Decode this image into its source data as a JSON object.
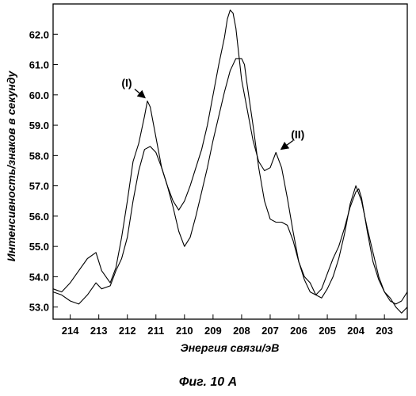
{
  "caption": "Фиг. 10 А",
  "chart_data": {
    "type": "line",
    "xlabel": "Энергия связи/эВ",
    "ylabel": "Интенсивность/знаков в секунду",
    "xlim": [
      214.6,
      202.2
    ],
    "ylim": [
      52.6,
      63.0
    ],
    "x_ticks": [
      214,
      213,
      212,
      211,
      210,
      209,
      208,
      207,
      206,
      205,
      204,
      203
    ],
    "y_ticks": [
      53.0,
      54.0,
      55.0,
      56.0,
      57.0,
      58.0,
      59.0,
      60.0,
      61.0,
      62.0
    ],
    "grid": false,
    "annotations": [
      {
        "text": "(I)",
        "x": 211.3,
        "y": 59.8
      },
      {
        "text": "(II)",
        "x": 206.7,
        "y": 58.1
      }
    ],
    "series": [
      {
        "label": "(I)",
        "x": [
          214.6,
          214.3,
          214.0,
          213.7,
          213.4,
          213.1,
          212.9,
          212.6,
          212.4,
          212.2,
          212.0,
          211.8,
          211.6,
          211.4,
          211.3,
          211.2,
          211.0,
          210.8,
          210.6,
          210.4,
          210.2,
          210.0,
          209.8,
          209.6,
          209.4,
          209.2,
          209.0,
          208.8,
          208.6,
          208.5,
          208.4,
          208.3,
          208.2,
          208.0,
          207.8,
          207.6,
          207.4,
          207.2,
          207.0,
          206.8,
          206.6,
          206.4,
          206.2,
          206.0,
          205.8,
          205.6,
          205.4,
          205.2,
          205.0,
          204.8,
          204.6,
          204.4,
          204.2,
          204.0,
          203.9,
          203.8,
          203.6,
          203.4,
          203.2,
          203.0,
          202.8,
          202.6,
          202.4,
          202.2
        ],
        "y": [
          53.6,
          53.5,
          53.8,
          54.2,
          54.6,
          54.8,
          54.2,
          53.8,
          54.3,
          55.3,
          56.5,
          57.8,
          58.4,
          59.3,
          59.8,
          59.6,
          58.6,
          57.6,
          57.0,
          56.5,
          56.2,
          56.5,
          57.0,
          57.6,
          58.2,
          59.0,
          60.0,
          61.0,
          61.9,
          62.5,
          62.8,
          62.7,
          62.2,
          60.5,
          59.5,
          58.5,
          57.8,
          57.5,
          57.6,
          58.1,
          57.6,
          56.6,
          55.5,
          54.5,
          53.9,
          53.5,
          53.4,
          53.6,
          54.1,
          54.6,
          55.0,
          55.6,
          56.3,
          56.8,
          56.9,
          56.6,
          55.5,
          54.5,
          53.9,
          53.5,
          53.2,
          53.1,
          53.2,
          53.5
        ]
      },
      {
        "label": "(II)",
        "x": [
          214.6,
          214.3,
          214.0,
          213.7,
          213.4,
          213.1,
          212.9,
          212.6,
          212.4,
          212.2,
          212.0,
          211.8,
          211.6,
          211.4,
          211.2,
          211.0,
          210.8,
          210.6,
          210.4,
          210.2,
          210.0,
          209.8,
          209.6,
          209.4,
          209.2,
          209.0,
          208.8,
          208.6,
          208.4,
          208.2,
          208.0,
          207.9,
          207.8,
          207.6,
          207.4,
          207.2,
          207.0,
          206.8,
          206.6,
          206.4,
          206.2,
          206.0,
          205.8,
          205.6,
          205.4,
          205.2,
          205.0,
          204.8,
          204.6,
          204.4,
          204.2,
          204.0,
          203.8,
          203.6,
          203.4,
          203.2,
          203.0,
          202.8,
          202.6,
          202.4,
          202.2
        ],
        "y": [
          53.5,
          53.4,
          53.2,
          53.1,
          53.4,
          53.8,
          53.6,
          53.7,
          54.2,
          54.6,
          55.3,
          56.5,
          57.5,
          58.2,
          58.3,
          58.1,
          57.6,
          57.0,
          56.3,
          55.5,
          55.0,
          55.3,
          56.0,
          56.8,
          57.6,
          58.5,
          59.3,
          60.1,
          60.8,
          61.2,
          61.2,
          61.0,
          60.3,
          59.0,
          57.6,
          56.5,
          55.9,
          55.8,
          55.8,
          55.7,
          55.2,
          54.5,
          54.0,
          53.8,
          53.4,
          53.3,
          53.6,
          54.0,
          54.6,
          55.4,
          56.4,
          57.0,
          56.5,
          55.6,
          54.8,
          54.0,
          53.5,
          53.3,
          53.0,
          52.8,
          53.0
        ]
      }
    ]
  }
}
